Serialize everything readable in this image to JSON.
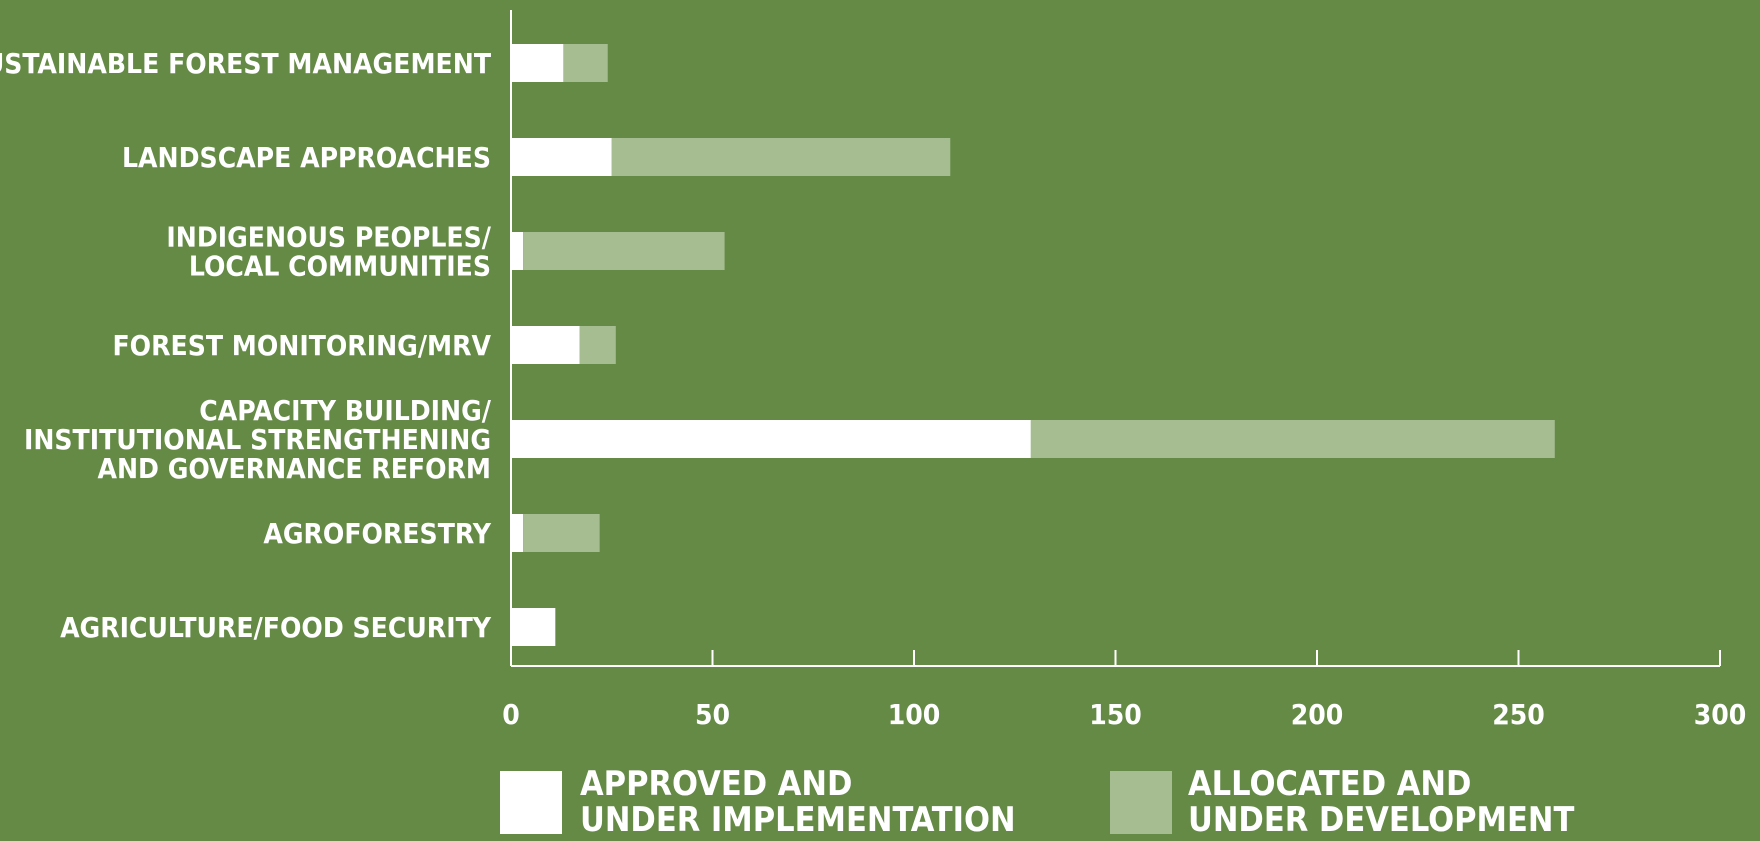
{
  "chart_data": {
    "type": "bar",
    "orientation": "horizontal",
    "stacked": true,
    "categories": [
      [
        "SUSTAINABLE FOREST MANAGEMENT"
      ],
      [
        "LANDSCAPE APPROACHES"
      ],
      [
        "INDIGENOUS PEOPLES/",
        "LOCAL COMMUNITIES"
      ],
      [
        "FOREST MONITORING/MRV"
      ],
      [
        "CAPACITY BUILDING/",
        "INSTITUTIONAL STRENGTHENING",
        "AND GOVERNANCE REFORM"
      ],
      [
        "AGROFORESTRY"
      ],
      [
        "AGRICULTURE/FOOD SECURITY"
      ]
    ],
    "series": [
      {
        "name": "APPROVED AND UNDER IMPLEMENTATION",
        "legend_lines": [
          "APPROVED AND",
          "UNDER IMPLEMENTATION"
        ],
        "color": "#ffffff",
        "values": [
          13,
          25,
          3,
          17,
          129,
          3,
          11
        ]
      },
      {
        "name": "ALLOCATED AND UNDER DEVELOPMENT",
        "legend_lines": [
          "ALLOCATED AND",
          "UNDER DEVELOPMENT"
        ],
        "color": "#a6bd91",
        "values": [
          11,
          84,
          50,
          9,
          130,
          19,
          0
        ]
      }
    ],
    "xlim": [
      0,
      300
    ],
    "xticks": [
      0,
      50,
      100,
      150,
      200,
      250,
      300
    ],
    "title": "",
    "xlabel": "",
    "ylabel": "",
    "grid": false,
    "legend_position": "bottom",
    "colors": {
      "background": "#648a46",
      "axis": "#ffffff",
      "text": "#ffffff"
    }
  }
}
